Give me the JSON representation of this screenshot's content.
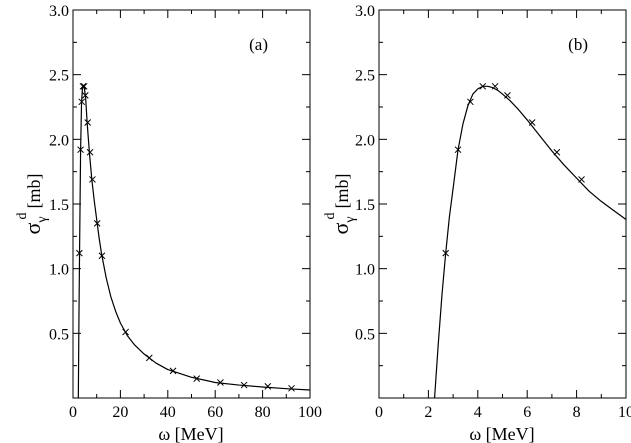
{
  "chart_data": [
    {
      "type": "line",
      "panel_label": "(a)",
      "xlabel": "ω [MeV]",
      "ylabel": {
        "main": "σ",
        "sub": "γ",
        "sup": "d",
        "unit": "[mb]"
      },
      "xlim": [
        0,
        100
      ],
      "ylim": [
        0,
        3.0
      ],
      "xticks": [
        0,
        20,
        40,
        60,
        80,
        100
      ],
      "xtick_labels": [
        "0",
        "20",
        "40",
        "60",
        "80",
        "100"
      ],
      "yticks": [
        0.5,
        1.0,
        1.5,
        2.0,
        2.5,
        3.0
      ],
      "ytick_labels": [
        "0.5",
        "1.0",
        "1.5",
        "2.0",
        "2.5",
        "3.0"
      ],
      "grid": false,
      "series": [
        {
          "style": "line",
          "x": [
            2.25,
            2.5,
            2.75,
            3.2,
            3.6,
            4.0,
            4.4,
            4.8,
            5.3,
            6.0,
            7.0,
            8.0,
            9.0,
            10.0,
            11.0,
            12.0,
            14.0,
            16.0,
            18.0,
            20.0,
            23.0,
            26.0,
            30.0,
            35.0,
            40.0,
            45.0,
            50.0,
            55.0,
            60.0,
            70.0,
            80.0,
            90.0,
            100.0
          ],
          "y": [
            0.0,
            0.6,
            1.1,
            1.9,
            2.28,
            2.4,
            2.41,
            2.39,
            2.33,
            2.12,
            1.88,
            1.68,
            1.52,
            1.38,
            1.24,
            1.12,
            0.93,
            0.78,
            0.67,
            0.58,
            0.48,
            0.41,
            0.34,
            0.27,
            0.22,
            0.19,
            0.16,
            0.14,
            0.12,
            0.1,
            0.085,
            0.072,
            0.062
          ]
        },
        {
          "style": "markers",
          "x": [
            2.7,
            3.2,
            3.7,
            4.2,
            4.7,
            5.2,
            6.2,
            7.2,
            8.2,
            10.2,
            12.2,
            22.2,
            32.2,
            42.2,
            52.2,
            62.2,
            72.2,
            82.2,
            92.2
          ],
          "y": [
            1.12,
            1.92,
            2.29,
            2.41,
            2.41,
            2.34,
            2.13,
            1.9,
            1.69,
            1.35,
            1.1,
            0.51,
            0.31,
            0.21,
            0.15,
            0.12,
            0.1,
            0.09,
            0.075
          ]
        }
      ]
    },
    {
      "type": "line",
      "panel_label": "(b)",
      "xlabel": "ω [MeV]",
      "ylabel": {
        "main": "σ",
        "sub": "γ",
        "sup": "d",
        "unit": "[mb]"
      },
      "xlim": [
        0,
        10
      ],
      "ylim": [
        0,
        3.0
      ],
      "xticks": [
        0,
        2,
        4,
        6,
        8,
        10
      ],
      "xtick_labels": [
        "0",
        "2",
        "4",
        "6",
        "8",
        "10"
      ],
      "yticks": [
        0.5,
        1.0,
        1.5,
        2.0,
        2.5,
        3.0
      ],
      "ytick_labels": [
        "0.5",
        "1.0",
        "1.5",
        "2.0",
        "2.5",
        "3.0"
      ],
      "grid": false,
      "series": [
        {
          "style": "line",
          "x": [
            2.25,
            2.4,
            2.55,
            2.7,
            2.85,
            3.0,
            3.2,
            3.4,
            3.6,
            3.8,
            4.0,
            4.2,
            4.4,
            4.6,
            4.8,
            5.0,
            5.3,
            5.6,
            6.0,
            6.5,
            7.0,
            7.5,
            8.0,
            8.5,
            9.0,
            9.5,
            10.0
          ],
          "y": [
            0.0,
            0.42,
            0.8,
            1.12,
            1.4,
            1.62,
            1.92,
            2.12,
            2.26,
            2.35,
            2.39,
            2.41,
            2.41,
            2.4,
            2.38,
            2.35,
            2.3,
            2.24,
            2.15,
            2.03,
            1.91,
            1.8,
            1.7,
            1.6,
            1.52,
            1.45,
            1.38
          ]
        },
        {
          "style": "markers",
          "x": [
            2.7,
            3.2,
            3.7,
            4.2,
            4.7,
            5.2,
            6.2,
            7.2,
            8.2
          ],
          "y": [
            1.12,
            1.92,
            2.29,
            2.41,
            2.41,
            2.34,
            2.13,
            1.9,
            1.69
          ]
        }
      ]
    }
  ]
}
